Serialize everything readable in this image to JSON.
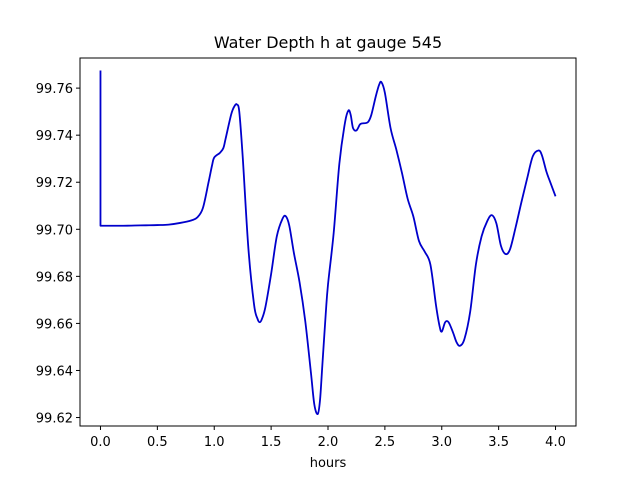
{
  "chart_data": {
    "type": "line",
    "title": "Water Depth h at gauge 545",
    "xlabel": "hours",
    "ylabel": "",
    "xlim": [
      -0.18,
      4.18
    ],
    "ylim": [
      99.6164,
      99.7728
    ],
    "xticks": [
      0.0,
      0.5,
      1.0,
      1.5,
      2.0,
      2.5,
      3.0,
      3.5,
      4.0
    ],
    "xtick_labels": [
      "0.0",
      "0.5",
      "1.0",
      "1.5",
      "2.0",
      "2.5",
      "3.0",
      "3.5",
      "4.0"
    ],
    "yticks": [
      99.62,
      99.64,
      99.66,
      99.68,
      99.7,
      99.72,
      99.74,
      99.76
    ],
    "ytick_labels": [
      "99.62",
      "99.64",
      "99.66",
      "99.68",
      "99.70",
      "99.72",
      "99.74",
      "99.76"
    ],
    "grid": false,
    "series": [
      {
        "color": "#0000cc",
        "x": [
          0.0,
          0.0,
          0.0,
          0.1,
          0.2,
          0.3,
          0.4,
          0.5,
          0.6,
          0.7,
          0.8,
          0.85,
          0.9,
          0.95,
          0.98,
          1.0,
          1.05,
          1.08,
          1.1,
          1.15,
          1.18,
          1.2,
          1.22,
          1.25,
          1.3,
          1.35,
          1.38,
          1.4,
          1.42,
          1.45,
          1.5,
          1.55,
          1.6,
          1.63,
          1.66,
          1.7,
          1.75,
          1.8,
          1.85,
          1.88,
          1.91,
          1.93,
          1.95,
          1.98,
          2.0,
          2.05,
          2.1,
          2.15,
          2.18,
          2.2,
          2.22,
          2.25,
          2.28,
          2.3,
          2.35,
          2.38,
          2.42,
          2.45,
          2.47,
          2.5,
          2.55,
          2.6,
          2.65,
          2.7,
          2.75,
          2.8,
          2.85,
          2.9,
          2.95,
          2.98,
          3.0,
          3.03,
          3.06,
          3.1,
          3.13,
          3.16,
          3.2,
          3.25,
          3.3,
          3.35,
          3.4,
          3.44,
          3.48,
          3.52,
          3.56,
          3.6,
          3.65,
          3.7,
          3.75,
          3.8,
          3.85,
          3.88,
          3.92,
          3.95,
          4.0
        ],
        "y": [
          99.7675,
          99.7015,
          99.7015,
          99.7015,
          99.7015,
          99.7016,
          99.7017,
          99.7018,
          99.702,
          99.7027,
          99.7038,
          99.705,
          99.709,
          99.72,
          99.727,
          99.7305,
          99.7325,
          99.7345,
          99.7385,
          99.749,
          99.7525,
          99.753,
          99.75,
          99.731,
          99.692,
          99.668,
          99.662,
          99.6605,
          99.662,
          99.667,
          99.681,
          99.697,
          99.7045,
          99.7055,
          99.7015,
          99.69,
          99.6775,
          99.661,
          99.639,
          99.6255,
          99.6215,
          99.6275,
          99.642,
          99.664,
          99.6765,
          99.6985,
          99.728,
          99.7455,
          99.7505,
          99.7485,
          99.743,
          99.742,
          99.7445,
          99.745,
          99.7455,
          99.7485,
          99.7565,
          99.7615,
          99.7625,
          99.758,
          99.743,
          99.734,
          99.724,
          99.713,
          99.7055,
          99.695,
          99.6905,
          99.685,
          99.6675,
          99.659,
          99.6565,
          99.6605,
          99.6605,
          99.656,
          99.652,
          99.6505,
          99.6535,
          99.665,
          99.685,
          99.697,
          99.7035,
          99.706,
          99.7025,
          99.693,
          99.6895,
          99.6915,
          99.701,
          99.7115,
          99.7215,
          99.731,
          99.7335,
          99.7315,
          99.7245,
          99.7205,
          99.714
        ]
      }
    ]
  }
}
